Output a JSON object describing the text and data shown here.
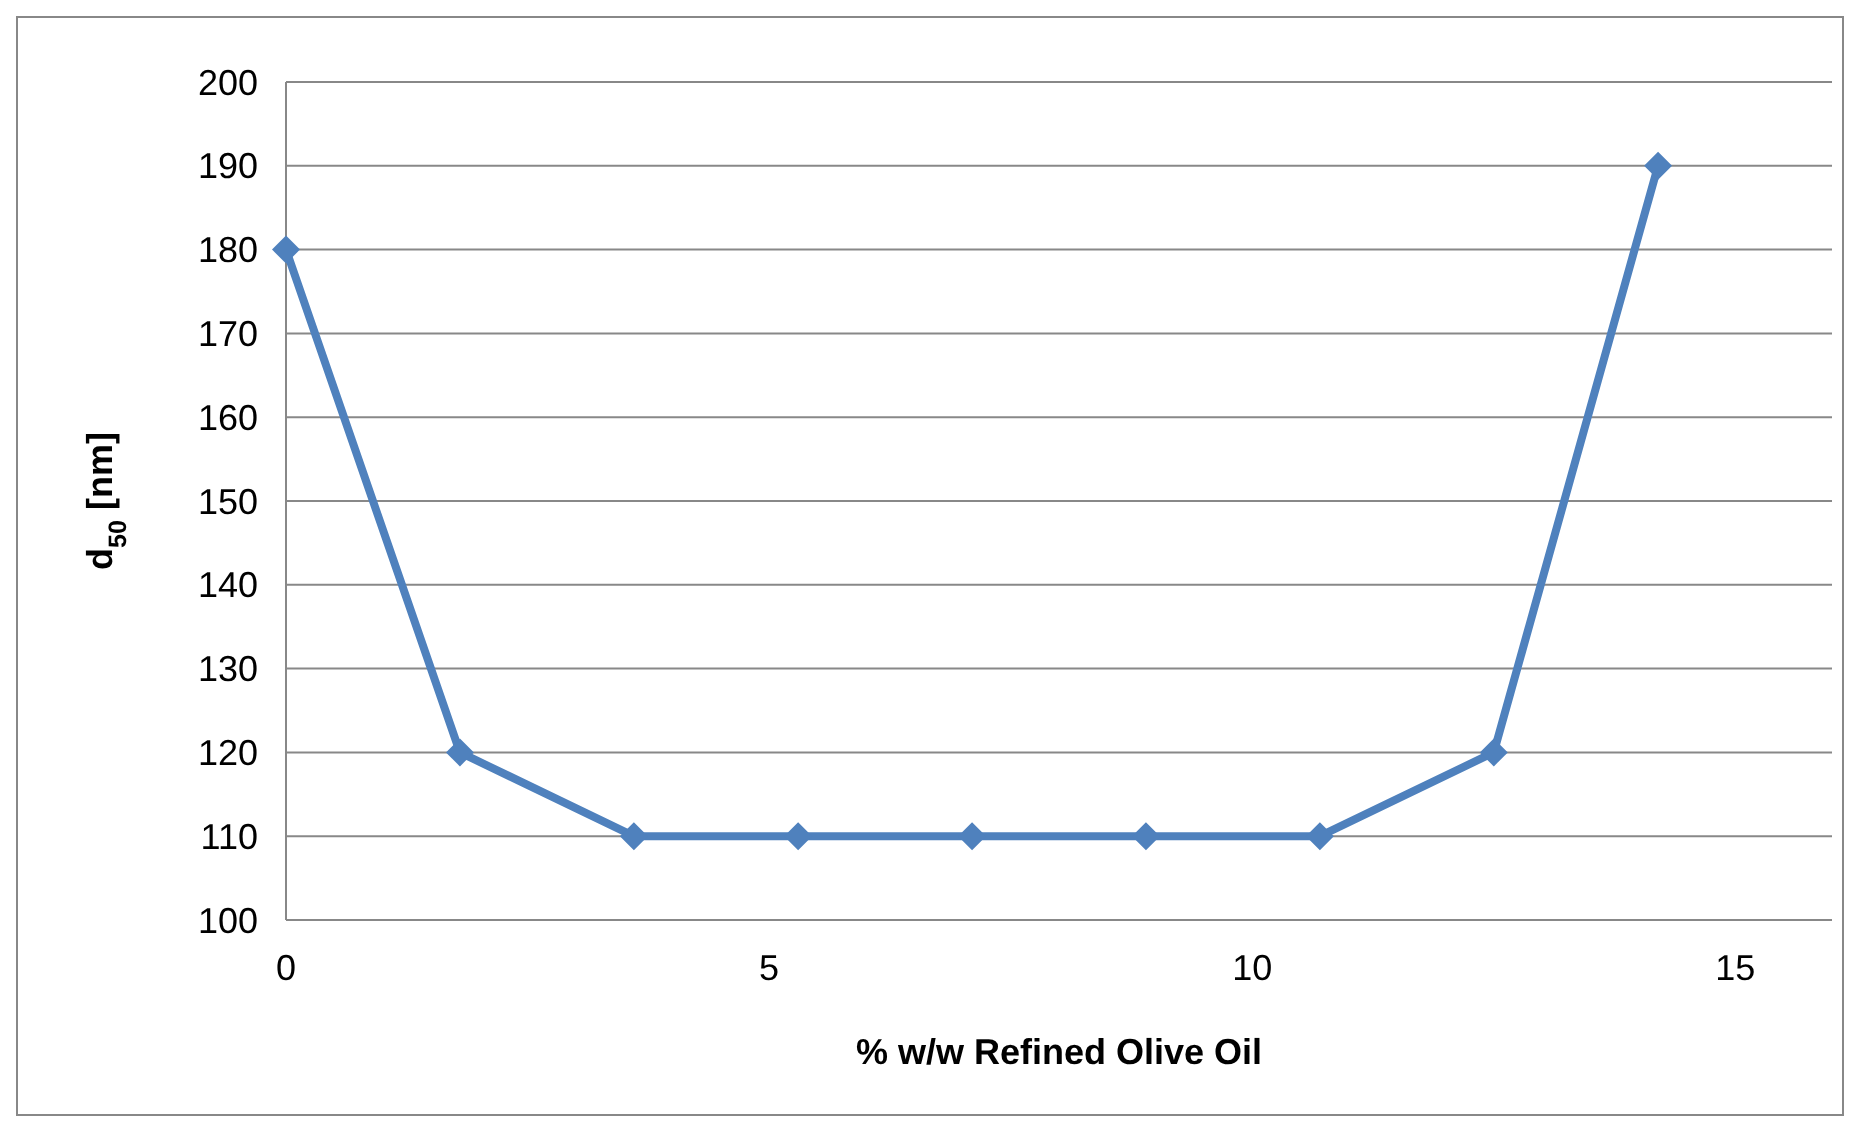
{
  "chart_data": {
    "type": "line",
    "xlabel": "% w/w Refined Olive Oil",
    "ylabel": "d$_{50}$ [nm]",
    "x": [
      0,
      1.8,
      3.6,
      5.3,
      7.1,
      8.9,
      10.7,
      12.5,
      14.2
    ],
    "series": [
      {
        "color": "#4f81bd",
        "values": [
          180,
          120,
          110,
          110,
          110,
          110,
          110,
          120,
          190
        ]
      }
    ],
    "xlim": [
      0,
      16
    ],
    "xticks": [
      0,
      5,
      10,
      15
    ],
    "ylim": [
      100,
      200
    ],
    "yticks": [
      100,
      110,
      120,
      130,
      140,
      150,
      160,
      170,
      180,
      190,
      200
    ],
    "grid": "y",
    "marker": "diamond",
    "line_style": "solid"
  }
}
